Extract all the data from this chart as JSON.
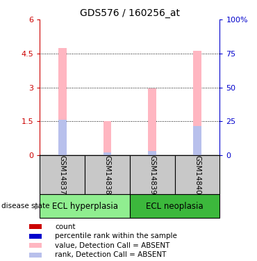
{
  "title": "GDS576 / 160256_at",
  "samples": [
    "GSM14837",
    "GSM14838",
    "GSM14839",
    "GSM14840"
  ],
  "groups": [
    {
      "label": "ECL hyperplasia",
      "color": "#90EE90",
      "indices": [
        0,
        1
      ]
    },
    {
      "label": "ECL neoplasia",
      "color": "#3CB83C",
      "indices": [
        2,
        3
      ]
    }
  ],
  "bar_values": [
    4.75,
    1.52,
    2.95,
    4.62
  ],
  "rank_values": [
    1.58,
    0.13,
    0.2,
    1.3
  ],
  "ylim_left": [
    0,
    6
  ],
  "ylim_right": [
    0,
    100
  ],
  "yticks_left": [
    0,
    1.5,
    3.0,
    4.5,
    6.0
  ],
  "ytick_labels_left": [
    "0",
    "1.5",
    "3",
    "4.5",
    "6"
  ],
  "yticks_right": [
    0,
    25,
    50,
    75,
    100
  ],
  "ytick_labels_right": [
    "0",
    "25",
    "50",
    "75",
    "100%"
  ],
  "bar_color": "#FFB6C1",
  "rank_color": "#B8C0EC",
  "left_axis_color": "#CC0000",
  "right_axis_color": "#0000CC",
  "sample_bg_color": "#C8C8C8",
  "group1_color": "#90EE90",
  "group2_color": "#3CB83C",
  "bar_width": 0.18,
  "legend_items": [
    {
      "label": "count",
      "color": "#CC0000"
    },
    {
      "label": "percentile rank within the sample",
      "color": "#0000CC"
    },
    {
      "label": "value, Detection Call = ABSENT",
      "color": "#FFB6C1"
    },
    {
      "label": "rank, Detection Call = ABSENT",
      "color": "#B8C0EC"
    }
  ]
}
